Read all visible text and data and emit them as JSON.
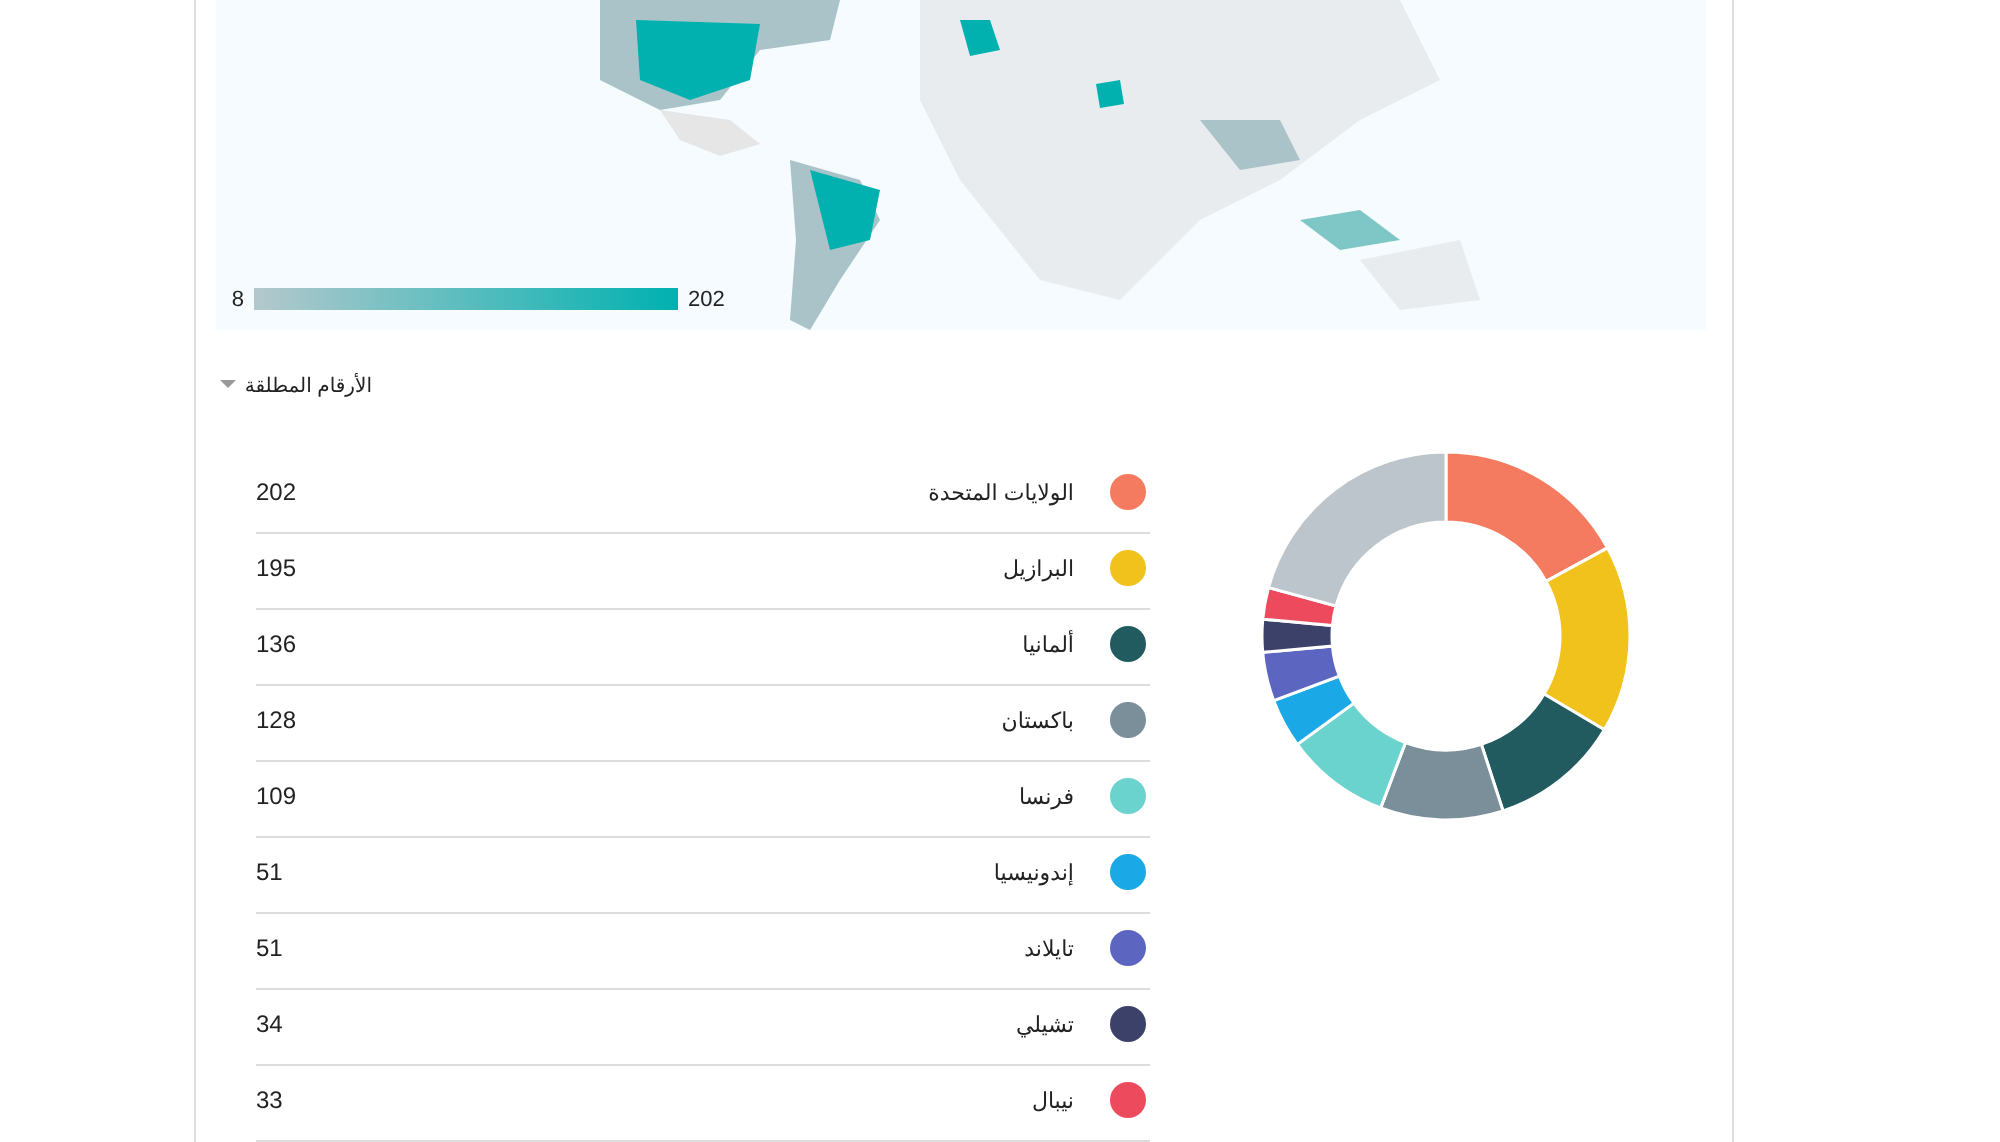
{
  "chart_data": [
    {
      "type": "other",
      "annotations": [
        "8",
        "202"
      ]
    },
    {
      "type": "donut",
      "title": "الأرقام المطلقة",
      "categories": [
        "الولايات المتحدة",
        "البرازيل",
        "ألمانيا",
        "باكستان",
        "فرنسا",
        "إندونيسيا",
        "تايلاند",
        "تشيلي",
        "نيبال",
        null
      ],
      "values": [
        202,
        195,
        136,
        128,
        109,
        51,
        51,
        34,
        33,
        246
      ],
      "colors": [
        "#f47b5f",
        "#f1c21b",
        "#215b5f",
        "#7a8f99",
        "#6ad3cd",
        "#1aa9e6",
        "#5c65c0",
        "#3b4169",
        "#ee4a5d",
        "#bcc5cb"
      ],
      "value_labels": [
        "202",
        "195",
        "136",
        "128",
        "109",
        "51",
        "51",
        "34",
        "33",
        null
      ],
      "legend": "left"
    }
  ]
}
